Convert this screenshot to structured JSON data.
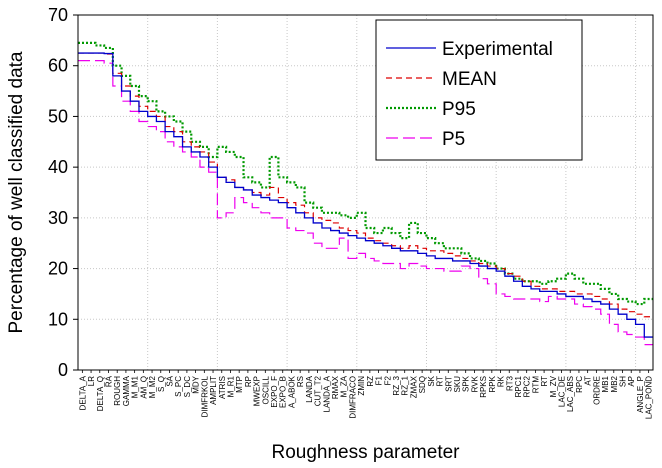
{
  "chart_data": {
    "type": "line",
    "title": "",
    "xlabel": "Roughness parameter",
    "ylabel": "Percentage of well classified data",
    "ylim": [
      0,
      70
    ],
    "yticks": [
      0,
      10,
      20,
      30,
      40,
      50,
      60,
      70
    ],
    "grid": true,
    "legend_position": "top-right",
    "categories": [
      "DELTA_A",
      "LR",
      "DELTA_Q",
      "RA",
      "ROUGH",
      "GAMMA",
      "M_M1",
      "AM_Q",
      "M_M2",
      "S_Q",
      "SA",
      "S_PC",
      "S_DC",
      "MDY",
      "DIMFRKOL",
      "AMPLIT",
      "ATRIS",
      "M_R1",
      "MTP",
      "RP",
      "MWEXP",
      "OSCILL",
      "EXPO_F",
      "EXPO_B",
      "A_ABOK",
      "RS",
      "LANDA",
      "CUT_T2",
      "LANDA_A",
      "RMAX",
      "M_ZA",
      "DIMFRACO",
      "ZMIN",
      "RZ",
      "F1",
      "F2",
      "RZ_3",
      "RZ_1",
      "ZMAX",
      "SDQ",
      "SK",
      "RT",
      "SRT",
      "SKU",
      "SPK",
      "RVK",
      "RPKS",
      "RPK",
      "RK",
      "RT3",
      "RPC1",
      "RPC2",
      "RTM",
      "RT",
      "M_ZV",
      "LAC_DE",
      "LAC_ABS",
      "RPC",
      "AT",
      "ORDRE",
      "MB1",
      "MB2",
      "SH",
      "AP",
      "ANGLE_P",
      "LAC_POND"
    ],
    "series": [
      {
        "name": "Experimental",
        "color": "#0000cc",
        "style": "solid",
        "values": [
          62.5,
          62.5,
          62.5,
          62.4,
          58,
          55,
          53,
          51,
          50,
          49,
          47,
          46,
          44,
          43,
          42,
          40,
          38,
          37,
          36,
          35.5,
          34.5,
          34,
          33.5,
          33,
          32,
          31,
          30,
          29,
          28,
          27.5,
          27,
          26.5,
          26,
          25.5,
          25,
          24.5,
          24,
          23.5,
          23.5,
          23,
          22.5,
          22,
          22,
          21.5,
          21.5,
          21,
          20.5,
          20,
          19.5,
          18.5,
          17.5,
          16.5,
          16,
          15.5,
          15.5,
          15,
          14.5,
          14.5,
          14,
          13.5,
          13,
          12,
          11,
          10,
          9,
          6.5
        ]
      },
      {
        "name": "MEAN",
        "color": "#dd0000",
        "style": "dashed",
        "values": [
          62.5,
          62.5,
          62.5,
          62.3,
          58.5,
          56,
          54,
          52,
          51,
          50,
          48,
          47,
          45,
          44,
          43,
          41,
          38,
          37.5,
          36,
          35.5,
          35,
          34.5,
          36,
          34,
          33,
          32.5,
          31,
          30,
          29.5,
          29,
          28,
          27.5,
          27,
          26,
          25.5,
          25,
          24.5,
          24,
          24.5,
          24,
          23.5,
          23.5,
          23,
          22.5,
          22,
          21.5,
          21,
          20.5,
          20,
          19,
          18.5,
          17.5,
          16.5,
          16,
          16,
          15.5,
          15.5,
          15,
          15,
          14.5,
          14,
          13,
          12,
          11.5,
          11,
          10.5
        ]
      },
      {
        "name": "P95",
        "color": "#009900",
        "style": "dotted",
        "values": [
          64.5,
          64.5,
          64,
          63.5,
          60,
          58,
          56,
          54,
          53,
          51,
          50,
          49,
          47,
          45,
          44,
          42,
          44,
          43,
          42,
          38,
          37,
          36,
          42,
          38,
          37,
          36,
          33,
          32,
          31,
          31,
          30.5,
          30,
          31,
          28,
          27,
          28,
          27,
          26,
          29,
          27,
          26,
          25,
          24,
          24,
          23,
          22,
          21.5,
          21,
          20,
          19,
          18,
          17.5,
          17.5,
          17,
          17.5,
          18,
          19,
          18,
          17,
          17,
          16,
          15,
          14,
          13.5,
          13,
          14
        ]
      },
      {
        "name": "P5",
        "color": "#ee00ee",
        "style": "longdash",
        "values": [
          61,
          61,
          61,
          60.5,
          56,
          53,
          51,
          49,
          48,
          47,
          45,
          44,
          43,
          42,
          40,
          39,
          30,
          31,
          34,
          33,
          32,
          31,
          30,
          30,
          28,
          27.5,
          27,
          25,
          24,
          24,
          26,
          22,
          23,
          22,
          21.5,
          21,
          21,
          20,
          21,
          20.5,
          20,
          20,
          19.5,
          19.5,
          20.5,
          20,
          18,
          17,
          15,
          14.5,
          14,
          14,
          14,
          13.5,
          14.5,
          14,
          14,
          13,
          12.5,
          12,
          11,
          9,
          7.5,
          7,
          6.5,
          5
        ]
      }
    ]
  }
}
